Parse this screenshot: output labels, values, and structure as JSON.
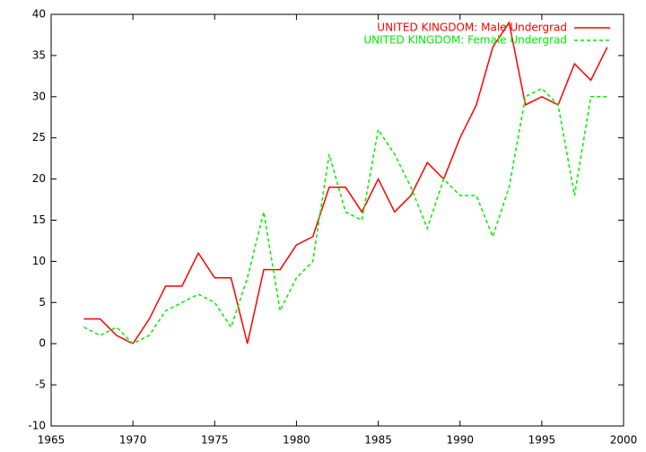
{
  "chart_data": {
    "type": "line",
    "x": [
      1967,
      1968,
      1969,
      1970,
      1971,
      1972,
      1973,
      1974,
      1975,
      1976,
      1977,
      1978,
      1979,
      1980,
      1981,
      1982,
      1983,
      1984,
      1985,
      1986,
      1987,
      1988,
      1989,
      1990,
      1991,
      1992,
      1993,
      1994,
      1995,
      1996,
      1997,
      1998,
      1999
    ],
    "series": [
      {
        "name": "UNITED KINGDOM: Male Undergrad",
        "color": "#ff0000",
        "dashed": false,
        "values": [
          3,
          3,
          1,
          0,
          3,
          7,
          7,
          11,
          8,
          8,
          0,
          9,
          9,
          12,
          13,
          19,
          19,
          16,
          20,
          16,
          18,
          22,
          20,
          25,
          29,
          36,
          39,
          29,
          30,
          29,
          34,
          32,
          36
        ]
      },
      {
        "name": "UNITED KINGDOM: Female Undergrad",
        "color": "#00ee00",
        "dashed": true,
        "values": [
          2,
          1,
          2,
          0,
          1,
          4,
          5,
          6,
          5,
          2,
          8,
          16,
          4,
          8,
          10,
          23,
          16,
          15,
          26,
          23,
          19,
          14,
          20,
          18,
          18,
          13,
          19,
          30,
          31,
          29,
          18,
          30,
          30
        ]
      }
    ],
    "xlim": [
      1965,
      2000
    ],
    "xticks": [
      1965,
      1970,
      1975,
      1980,
      1985,
      1990,
      1995,
      2000
    ],
    "ylim": [
      -10,
      40
    ],
    "yticks": [
      -10,
      -5,
      0,
      5,
      10,
      15,
      20,
      25,
      30,
      35,
      40
    ],
    "grid": false,
    "legend": "top-right"
  }
}
